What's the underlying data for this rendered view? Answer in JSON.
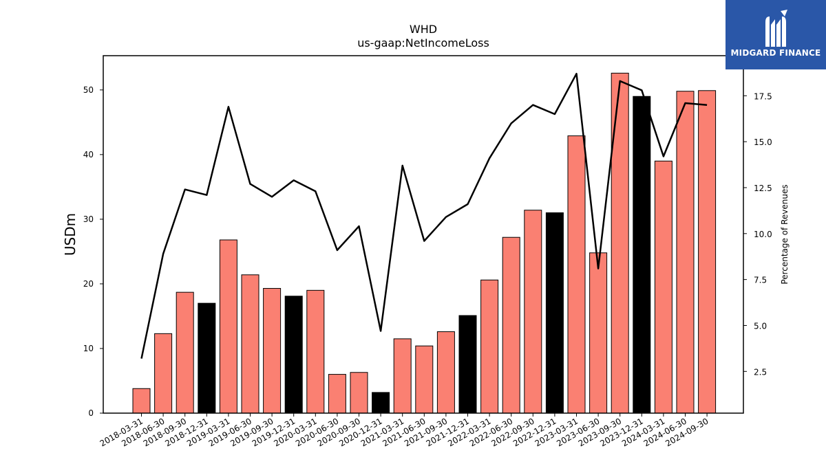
{
  "chart_data": {
    "type": "bar",
    "title": "WHD",
    "subtitle": "us-gaap:NetIncomeLoss",
    "ylabel": "USDm",
    "y2label": "Percentage of Revenues",
    "ylim": [
      0,
      55.3
    ],
    "y2lim": [
      0.23,
      19.68
    ],
    "yticks": [
      "0",
      "10",
      "20",
      "30",
      "40",
      "50"
    ],
    "y2ticks": [
      "2.5",
      "5.0",
      "7.5",
      "10.0",
      "12.5",
      "15.0",
      "17.5"
    ],
    "categories": [
      "2018-03-31",
      "2018-06-30",
      "2018-09-30",
      "2018-12-31",
      "2019-03-31",
      "2019-06-30",
      "2019-09-30",
      "2019-12-31",
      "2020-03-31",
      "2020-06-30",
      "2020-09-30",
      "2020-12-31",
      "2021-03-31",
      "2021-06-30",
      "2021-09-30",
      "2021-12-31",
      "2022-03-31",
      "2022-06-30",
      "2022-09-30",
      "2022-12-31",
      "2023-03-31",
      "2023-06-30",
      "2023-09-30",
      "2023-12-31",
      "2024-03-31",
      "2024-06-30",
      "2024-09-30"
    ],
    "series": [
      {
        "kind": "bar",
        "values": [
          3.8,
          12.3,
          18.7,
          17.0,
          26.8,
          21.4,
          19.3,
          18.1,
          19.0,
          6.0,
          6.3,
          3.2,
          11.5,
          10.4,
          12.6,
          15.1,
          20.6,
          27.2,
          31.4,
          31.0,
          42.9,
          24.8,
          52.6,
          49.0,
          39.0,
          49.8,
          49.9
        ],
        "colors": [
          "#fa8072",
          "#fa8072",
          "#fa8072",
          "#000000",
          "#fa8072",
          "#fa8072",
          "#fa8072",
          "#000000",
          "#fa8072",
          "#fa8072",
          "#fa8072",
          "#000000",
          "#fa8072",
          "#fa8072",
          "#fa8072",
          "#000000",
          "#fa8072",
          "#fa8072",
          "#fa8072",
          "#000000",
          "#fa8072",
          "#fa8072",
          "#fa8072",
          "#000000",
          "#fa8072",
          "#fa8072",
          "#fa8072"
        ]
      },
      {
        "kind": "line",
        "axis": "right",
        "color": "#000000",
        "values": [
          3.2,
          8.9,
          12.4,
          12.1,
          16.9,
          12.7,
          12.0,
          12.9,
          12.3,
          9.1,
          10.4,
          4.7,
          13.7,
          9.6,
          10.9,
          11.6,
          14.1,
          16.0,
          17.0,
          16.5,
          18.7,
          8.1,
          18.3,
          17.8,
          14.2,
          17.1,
          17.0
        ]
      }
    ],
    "grid": false,
    "legend": "none"
  },
  "logo": {
    "text": "MIDGARD FINANCE",
    "background": "#2a57a8"
  }
}
